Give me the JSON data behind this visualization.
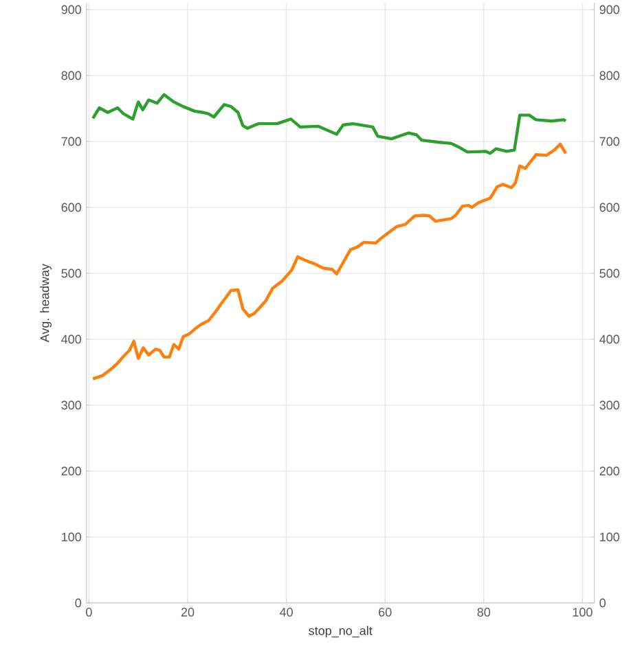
{
  "chart_data": {
    "type": "line",
    "xlabel": "stop_no_alt",
    "ylabel": "Avg. headway",
    "xlim": [
      -0.5,
      102.4
    ],
    "xticks": [
      0,
      20,
      40,
      60,
      80,
      100
    ],
    "ylim": [
      0,
      910
    ],
    "yticks": [
      0,
      100,
      200,
      300,
      400,
      500,
      600,
      700,
      800,
      900
    ],
    "y2lim": [
      0,
      910
    ],
    "y2ticks": [
      0,
      100,
      200,
      300,
      400,
      500,
      600,
      700,
      800,
      900
    ],
    "grid": true,
    "marker": "none",
    "line_style": "solid",
    "series": [
      {
        "color": "#2ca02c",
        "x": [
          0.8,
          2.1,
          3.8,
          5.8,
          7,
          8.9,
          10,
          10.9,
          12.1,
          13.8,
          15.2,
          17.2,
          19.1,
          21.4,
          23.1,
          24.2,
          25.3,
          27.4,
          28.8,
          30.2,
          31.2,
          32.1,
          34.4,
          38.1,
          40.9,
          42.8,
          46.5,
          50.2,
          51.5,
          53.5,
          57.5,
          58.5,
          61.3,
          64.8,
          66.4,
          67.4,
          70.7,
          73.4,
          74.8,
          76.7,
          80.4,
          81.3,
          82.5,
          84.6,
          86.2,
          87.3,
          89.2,
          90.6,
          93.8,
          96.2,
          96.6
        ],
        "values": [
          735,
          751,
          744,
          751,
          742,
          734,
          760,
          748,
          763,
          758,
          771,
          760,
          753,
          746,
          744,
          742,
          737,
          756,
          753,
          744,
          724,
          720,
          727,
          727,
          734,
          722,
          723,
          711,
          725,
          727,
          722,
          708,
          704,
          713,
          710,
          702,
          699,
          697,
          692,
          684,
          685,
          682,
          689,
          685,
          687,
          740,
          740,
          733,
          731,
          733,
          731
        ]
      },
      {
        "color": "#ff7f0e",
        "x": [
          0.8,
          2.8,
          4.2,
          5.6,
          7,
          8.2,
          9.1,
          10,
          11,
          12.1,
          13.5,
          14.4,
          15.2,
          16.3,
          17.2,
          18.2,
          19.1,
          20.3,
          21.4,
          22.8,
          24.2,
          25.6,
          26.9,
          28.8,
          30.2,
          31.2,
          32.4,
          33.5,
          34.6,
          35.8,
          37.2,
          39.1,
          41.1,
          42.3,
          43.7,
          45.5,
          47.4,
          49.3,
          50.2,
          53,
          54.4,
          55.7,
          58.1,
          59.5,
          62.4,
          64.1,
          66,
          67.8,
          69,
          70.2,
          73.4,
          74.3,
          75.7,
          76.9,
          77.6,
          78.9,
          81.3,
          82.7,
          83.8,
          85.6,
          86.4,
          87.3,
          88.4,
          90.6,
          92.7,
          94.3,
          95.5,
          96.6
        ],
        "values": [
          340,
          345,
          353,
          362,
          374,
          383,
          397,
          371,
          387,
          376,
          385,
          383,
          373,
          373,
          392,
          385,
          404,
          408,
          415,
          423,
          428,
          441,
          455,
          474,
          475,
          446,
          435,
          439,
          448,
          458,
          477,
          488,
          505,
          525,
          520,
          515,
          508,
          506,
          499,
          536,
          540,
          547,
          546,
          555,
          571,
          574,
          587,
          588,
          587,
          579,
          583,
          588,
          602,
          603,
          600,
          607,
          614,
          631,
          635,
          630,
          637,
          663,
          659,
          680,
          679,
          687,
          696,
          682
        ]
      }
    ]
  }
}
